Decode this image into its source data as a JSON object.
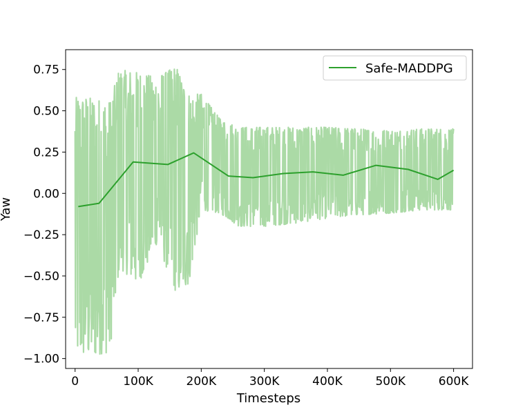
{
  "chart_data": {
    "type": "line",
    "xlabel": "Timesteps",
    "ylabel": "Yaw",
    "xlim": [
      -15000,
      630000
    ],
    "ylim": [
      -1.06,
      0.87
    ],
    "x_ticks": [
      0,
      100000,
      200000,
      300000,
      400000,
      500000,
      600000
    ],
    "x_tick_labels": [
      "0",
      "100K",
      "200K",
      "300K",
      "400K",
      "500K",
      "600K"
    ],
    "y_ticks": [
      0.75,
      0.5,
      0.25,
      0.0,
      -0.25,
      -0.5,
      -0.75,
      -1.0
    ],
    "y_tick_labels": [
      "0.75",
      "0.50",
      "0.25",
      "0.00",
      "−0.25",
      "−0.50",
      "−0.75",
      "−1.00"
    ],
    "grid": false,
    "legend_position": "top-right",
    "legend": [
      "Safe-MADDPG"
    ],
    "colors": {
      "series": "#2ca02c",
      "raw": "#abdaa6",
      "axes": "#000000"
    },
    "series": [
      {
        "name": "Safe-MADDPG",
        "x": [
          5000,
          38000,
          92000,
          147000,
          188000,
          243000,
          282000,
          330000,
          377000,
          425000,
          477000,
          528000,
          575000,
          600000
        ],
        "y": [
          -0.08,
          -0.06,
          0.19,
          0.175,
          0.245,
          0.105,
          0.095,
          0.12,
          0.13,
          0.11,
          0.17,
          0.145,
          0.085,
          0.14
        ]
      }
    ],
    "raw_band": [
      {
        "x": 0,
        "lo": -0.97,
        "hi": 0.58
      },
      {
        "x": 20000,
        "lo": -0.99,
        "hi": 0.58
      },
      {
        "x": 55000,
        "lo": -0.96,
        "hi": 0.55
      },
      {
        "x": 70000,
        "lo": -0.45,
        "hi": 0.75
      },
      {
        "x": 100000,
        "lo": -0.55,
        "hi": 0.73
      },
      {
        "x": 130000,
        "lo": -0.3,
        "hi": 0.7
      },
      {
        "x": 160000,
        "lo": -0.6,
        "hi": 0.77
      },
      {
        "x": 180000,
        "lo": -0.55,
        "hi": 0.6
      },
      {
        "x": 200000,
        "lo": -0.1,
        "hi": 0.6
      },
      {
        "x": 230000,
        "lo": -0.12,
        "hi": 0.45
      },
      {
        "x": 260000,
        "lo": -0.2,
        "hi": 0.4
      },
      {
        "x": 300000,
        "lo": -0.2,
        "hi": 0.4
      },
      {
        "x": 350000,
        "lo": -0.18,
        "hi": 0.4
      },
      {
        "x": 400000,
        "lo": -0.15,
        "hi": 0.4
      },
      {
        "x": 450000,
        "lo": -0.13,
        "hi": 0.39
      },
      {
        "x": 500000,
        "lo": -0.12,
        "hi": 0.38
      },
      {
        "x": 550000,
        "lo": -0.1,
        "hi": 0.39
      },
      {
        "x": 600000,
        "lo": -0.1,
        "hi": 0.39
      }
    ]
  }
}
